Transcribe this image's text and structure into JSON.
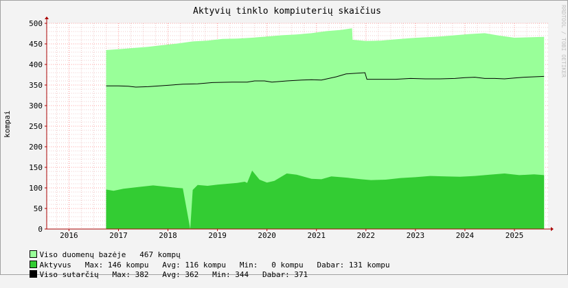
{
  "chart_data": {
    "type": "area",
    "title": "Aktyvių tinklo kompiuterių skaičius",
    "ylabel": "kompai",
    "watermark": "RRDTOOL / TOBI OETIKER",
    "ylim": [
      0,
      500
    ],
    "yticks": [
      "0",
      "50",
      "100",
      "150",
      "200",
      "250",
      "300",
      "350",
      "400",
      "450",
      "500"
    ],
    "xlim": [
      2015.55,
      2025.68
    ],
    "xticks": [
      {
        "label": "2016",
        "x": 2016.0
      },
      {
        "label": "2017",
        "x": 2017.0
      },
      {
        "label": "2018",
        "x": 2018.0
      },
      {
        "label": "2019",
        "x": 2019.0
      },
      {
        "label": "2020",
        "x": 2020.0
      },
      {
        "label": "2021",
        "x": 2021.0
      },
      {
        "label": "2022",
        "x": 2022.0
      },
      {
        "label": "2023",
        "x": 2023.0
      },
      {
        "label": "2024",
        "x": 2024.0
      },
      {
        "label": "2025",
        "x": 2025.0
      }
    ],
    "colors": {
      "database": "#99ff99",
      "active": "#33cc33",
      "contracts": "#000000",
      "grid": "#ff9c9c",
      "axis": "#aa0000"
    },
    "series": [
      {
        "name": "Viso duomenų bazėje",
        "style": "area",
        "x": [
          2016.75,
          2017.0,
          2017.3,
          2017.6,
          2017.9,
          2018.2,
          2018.5,
          2018.8,
          2019.1,
          2019.4,
          2019.7,
          2020.0,
          2020.3,
          2020.6,
          2020.9,
          2021.2,
          2021.5,
          2021.72,
          2021.73,
          2022.0,
          2022.3,
          2022.6,
          2022.9,
          2023.2,
          2023.5,
          2023.8,
          2024.1,
          2024.4,
          2024.7,
          2025.0,
          2025.3,
          2025.6
        ],
        "values": [
          435,
          437,
          440,
          443,
          447,
          451,
          456,
          458,
          462,
          463,
          465,
          468,
          471,
          473,
          476,
          481,
          484,
          488,
          460,
          457,
          458,
          461,
          464,
          466,
          468,
          471,
          474,
          476,
          470,
          465,
          466,
          467
        ]
      },
      {
        "name": "Aktyvus",
        "style": "area",
        "x": [
          2016.75,
          2016.9,
          2017.1,
          2017.4,
          2017.7,
          2017.95,
          2018.1,
          2018.3,
          2018.45,
          2018.5,
          2018.6,
          2018.8,
          2019.0,
          2019.2,
          2019.4,
          2019.55,
          2019.6,
          2019.7,
          2019.85,
          2020.0,
          2020.15,
          2020.4,
          2020.6,
          2020.9,
          2021.1,
          2021.3,
          2021.6,
          2021.9,
          2022.1,
          2022.4,
          2022.7,
          2023.0,
          2023.3,
          2023.6,
          2023.9,
          2024.2,
          2024.5,
          2024.8,
          2025.1,
          2025.4,
          2025.6
        ],
        "values": [
          96,
          93,
          98,
          102,
          106,
          103,
          101,
          99,
          0,
          95,
          107,
          105,
          108,
          110,
          112,
          115,
          112,
          142,
          120,
          113,
          117,
          135,
          132,
          122,
          121,
          128,
          125,
          121,
          119,
          120,
          124,
          126,
          129,
          128,
          127,
          129,
          132,
          135,
          131,
          133,
          131
        ]
      },
      {
        "name": "Viso sutarčių",
        "style": "line",
        "x": [
          2016.75,
          2017.0,
          2017.2,
          2017.35,
          2017.6,
          2017.95,
          2018.3,
          2018.6,
          2018.9,
          2019.3,
          2019.6,
          2019.75,
          2019.95,
          2020.1,
          2020.4,
          2020.7,
          2020.9,
          2021.1,
          2021.4,
          2021.6,
          2021.98,
          2022.02,
          2022.3,
          2022.6,
          2022.9,
          2023.2,
          2023.5,
          2023.8,
          2024.0,
          2024.2,
          2024.4,
          2024.6,
          2024.8,
          2025.0,
          2025.2,
          2025.4,
          2025.6
        ],
        "values": [
          348,
          348,
          347,
          345,
          346,
          349,
          352,
          353,
          356,
          357,
          357,
          360,
          360,
          357,
          360,
          362,
          363,
          362,
          370,
          377,
          380,
          364,
          364,
          364,
          366,
          365,
          365,
          366,
          368,
          369,
          366,
          366,
          365,
          367,
          369,
          370,
          371
        ]
      }
    ]
  },
  "legend": [
    {
      "text": "Viso duomenų bazėje   467 kompų",
      "color": "#99ff99"
    },
    {
      "text": "Aktyvus   Max: 146 kompu   Avg: 116 kompu   Min:   0 kompu   Dabar: 131 kompu",
      "color": "#33cc33"
    },
    {
      "text": "Viso sutarčių   Max: 382   Avg: 362   Min: 344   Dabar: 371",
      "color": "#000000"
    }
  ]
}
